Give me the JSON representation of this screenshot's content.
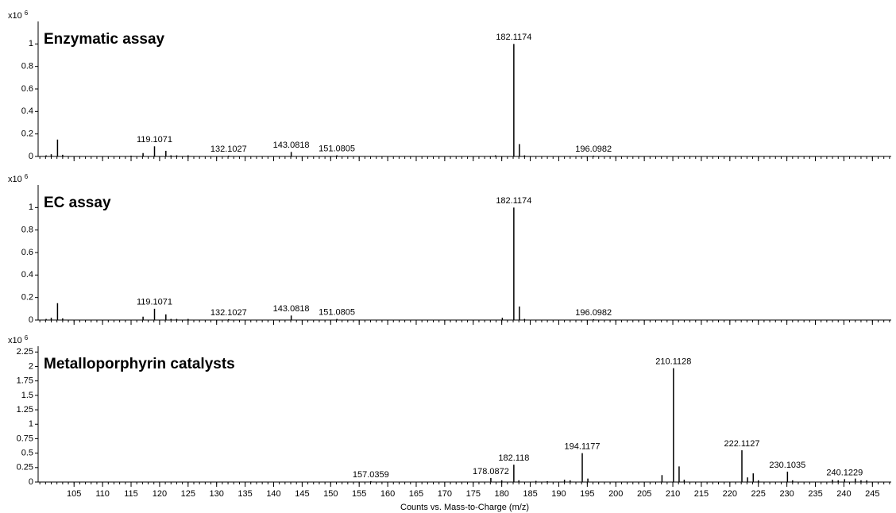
{
  "chart_data": [
    {
      "type": "stem",
      "title": "Enzymatic assay",
      "title_color": "#ee1111",
      "color": "#000000",
      "y_scale_base": "x10",
      "y_scale_exponent": "6",
      "xlim": [
        98.7,
        248.3
      ],
      "xticks": [
        105,
        110,
        115,
        120,
        125,
        130,
        135,
        140,
        145,
        150,
        155,
        160,
        165,
        170,
        175,
        180,
        185,
        190,
        195,
        200,
        205,
        210,
        215,
        220,
        225,
        230,
        235,
        240,
        245
      ],
      "ylim": [
        0,
        1.2
      ],
      "yticks": [
        0,
        0.2,
        0.4,
        0.6,
        0.8,
        1
      ],
      "annotated_peaks": {
        "x": [
          119.1071,
          132.1027,
          143.0818,
          151.0805,
          182.1174,
          196.0982
        ],
        "values": [
          0.09,
          0.005,
          0.04,
          0.01,
          1.0,
          0.003
        ]
      },
      "peaks": {
        "x": [
          100.1,
          101.0,
          102.1,
          103.0,
          115.0,
          117.1,
          121.1,
          122.0,
          123.0,
          125.0,
          178.9,
          183.1,
          184.0
        ],
        "values": [
          0.01,
          0.02,
          0.15,
          0.015,
          0.005,
          0.03,
          0.05,
          0.01,
          0.01,
          0.01,
          0.01,
          0.11,
          0.01
        ]
      }
    },
    {
      "type": "stem",
      "title": "EC assay",
      "title_color": "#ee1111",
      "color": "#000000",
      "y_scale_base": "x10",
      "y_scale_exponent": "6",
      "xlim": [
        98.7,
        248.3
      ],
      "xticks": [
        105,
        110,
        115,
        120,
        125,
        130,
        135,
        140,
        145,
        150,
        155,
        160,
        165,
        170,
        175,
        180,
        185,
        190,
        195,
        200,
        205,
        210,
        215,
        220,
        225,
        230,
        235,
        240,
        245
      ],
      "ylim": [
        0,
        1.2
      ],
      "yticks": [
        0,
        0.2,
        0.4,
        0.6,
        0.8,
        1
      ],
      "annotated_peaks": {
        "x": [
          119.1071,
          132.1027,
          143.0818,
          151.0805,
          182.1174,
          196.0982
        ],
        "values": [
          0.1,
          0.005,
          0.04,
          0.01,
          1.0,
          0.003
        ]
      },
      "peaks": {
        "x": [
          100.1,
          101.0,
          102.1,
          103.0,
          117.1,
          121.1,
          122.0,
          123.0,
          125.0,
          180.1,
          183.1,
          184.0
        ],
        "values": [
          0.01,
          0.02,
          0.15,
          0.015,
          0.03,
          0.05,
          0.01,
          0.01,
          0.01,
          0.02,
          0.12,
          0.01
        ]
      }
    },
    {
      "type": "stem",
      "title": "Metalloporphyrin catalysts",
      "title_color": "#ee1111",
      "color": "#000000",
      "y_scale_base": "x10",
      "y_scale_exponent": "6",
      "x_label": "Counts vs. Mass-to-Charge (m/z)",
      "xlim": [
        98.7,
        248.3
      ],
      "xticks": [
        105,
        110,
        115,
        120,
        125,
        130,
        135,
        140,
        145,
        150,
        155,
        160,
        165,
        170,
        175,
        180,
        185,
        190,
        195,
        200,
        205,
        210,
        215,
        220,
        225,
        230,
        235,
        240,
        245
      ],
      "ylim": [
        0,
        2.35
      ],
      "yticks": [
        0,
        0.25,
        0.5,
        0.75,
        1,
        1.25,
        1.5,
        1.75,
        2,
        2.25
      ],
      "annotated_peaks": {
        "x": [
          157.0359,
          178.0872,
          182.118,
          194.1177,
          210.1128,
          222.1127,
          230.1035,
          240.1229
        ],
        "values": [
          0.01,
          0.07,
          0.3,
          0.5,
          1.97,
          0.55,
          0.18,
          0.05
        ]
      },
      "peaks": {
        "x": [
          180.0,
          183.0,
          186.0,
          188.0,
          191.0,
          192.0,
          195.1,
          208.1,
          211.1,
          212.0,
          223.1,
          224.1,
          225.0,
          231.0,
          238.0,
          239.0,
          242.0,
          243.0,
          244.0
        ],
        "values": [
          0.03,
          0.03,
          0.02,
          0.01,
          0.04,
          0.03,
          0.06,
          0.12,
          0.27,
          0.04,
          0.08,
          0.15,
          0.03,
          0.03,
          0.04,
          0.03,
          0.06,
          0.03,
          0.03
        ]
      }
    }
  ]
}
